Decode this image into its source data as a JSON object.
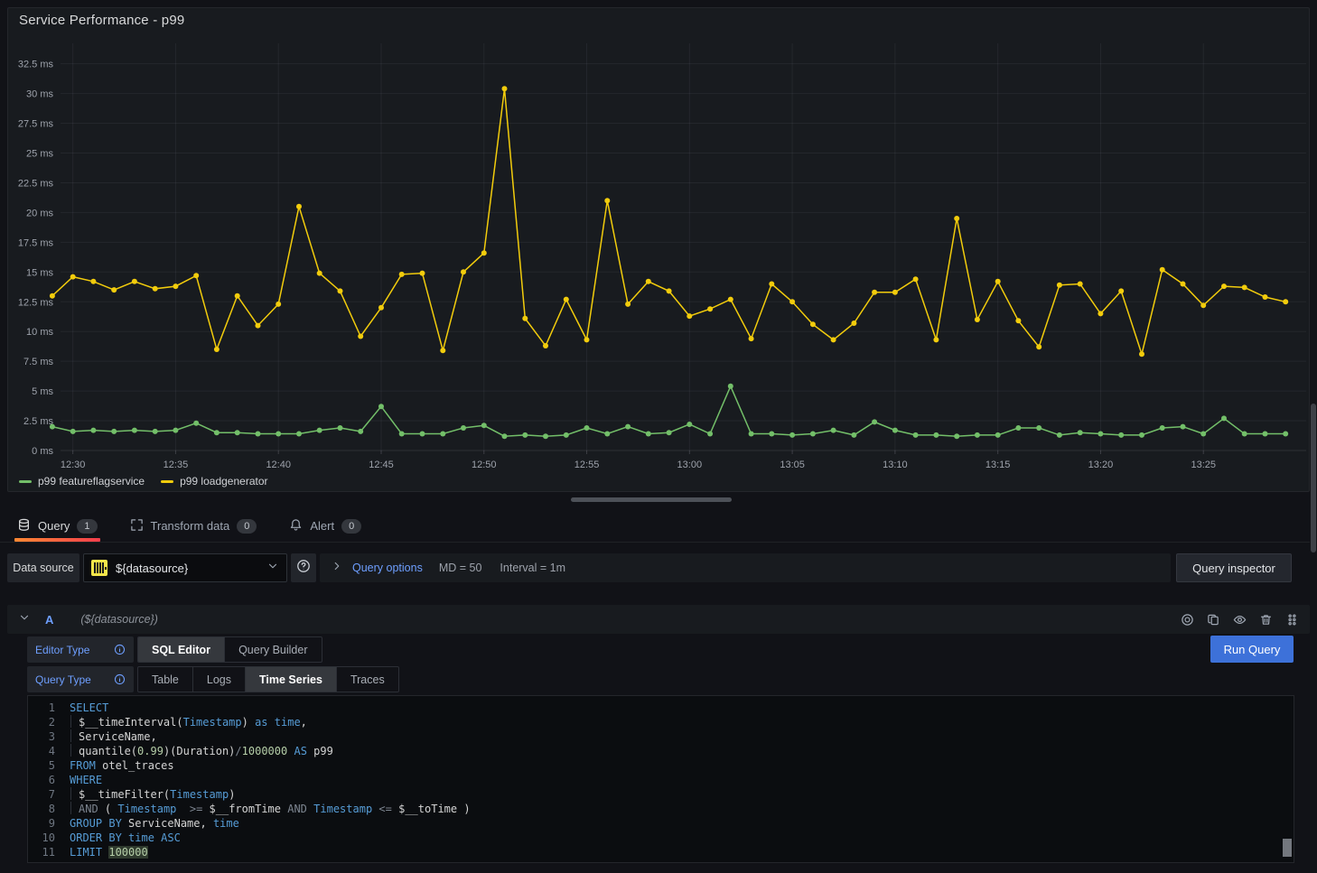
{
  "panel": {
    "title": "Service Performance - p99"
  },
  "chart_data": {
    "type": "line",
    "title": "Service Performance - p99",
    "unit": "ms",
    "grid": true,
    "legend_position": "bottom-left",
    "ylim": [
      0,
      34.5
    ],
    "y_ticks": [
      0,
      2.5,
      5,
      7.5,
      10,
      12.5,
      15,
      17.5,
      20,
      22.5,
      25,
      27.5,
      30,
      32.5
    ],
    "x_ticks": [
      "12:30",
      "12:35",
      "12:40",
      "12:45",
      "12:50",
      "12:55",
      "13:00",
      "13:05",
      "13:10",
      "13:15",
      "13:20",
      "13:25"
    ],
    "x": [
      "12:29",
      "12:30",
      "12:31",
      "12:32",
      "12:33",
      "12:34",
      "12:35",
      "12:36",
      "12:37",
      "12:38",
      "12:39",
      "12:40",
      "12:41",
      "12:42",
      "12:43",
      "12:44",
      "12:45",
      "12:46",
      "12:47",
      "12:48",
      "12:49",
      "12:50",
      "12:51",
      "12:52",
      "12:53",
      "12:54",
      "12:55",
      "12:56",
      "12:57",
      "12:58",
      "12:59",
      "13:00",
      "13:01",
      "13:02",
      "13:03",
      "13:04",
      "13:05",
      "13:06",
      "13:07",
      "13:08",
      "13:09",
      "13:10",
      "13:11",
      "13:12",
      "13:13",
      "13:14",
      "13:15",
      "13:16",
      "13:17",
      "13:18",
      "13:19",
      "13:20",
      "13:21",
      "13:22",
      "13:23",
      "13:24",
      "13:25",
      "13:26",
      "13:27",
      "13:28",
      "13:29"
    ],
    "series": [
      {
        "name": "p99 featureflagservice",
        "color": "#73bf69",
        "values": [
          2.0,
          1.6,
          1.7,
          1.6,
          1.7,
          1.6,
          1.7,
          2.3,
          1.5,
          1.5,
          1.4,
          1.4,
          1.4,
          1.7,
          1.9,
          1.6,
          3.7,
          1.4,
          1.4,
          1.4,
          1.9,
          2.1,
          1.2,
          1.3,
          1.2,
          1.3,
          1.9,
          1.4,
          2.0,
          1.4,
          1.5,
          2.2,
          1.4,
          5.4,
          1.4,
          1.4,
          1.3,
          1.4,
          1.7,
          1.3,
          2.4,
          1.7,
          1.3,
          1.3,
          1.2,
          1.3,
          1.3,
          1.9,
          1.9,
          1.3,
          1.5,
          1.4,
          1.3,
          1.3,
          1.9,
          2.0,
          1.4,
          2.7,
          1.4,
          1.4,
          1.4
        ]
      },
      {
        "name": "p99 loadgenerator",
        "color": "#f2cc0c",
        "values": [
          13.0,
          14.6,
          14.2,
          13.5,
          14.2,
          13.6,
          13.8,
          14.7,
          8.5,
          13.0,
          10.5,
          12.3,
          20.5,
          14.9,
          13.4,
          9.6,
          12.0,
          14.8,
          14.9,
          8.4,
          15.0,
          16.6,
          30.4,
          11.1,
          8.8,
          12.7,
          9.3,
          21.0,
          12.3,
          14.2,
          13.4,
          11.3,
          11.9,
          12.7,
          9.4,
          14.0,
          12.5,
          10.6,
          9.3,
          10.7,
          13.3,
          13.3,
          14.4,
          9.3,
          19.5,
          11.0,
          14.2,
          10.9,
          8.7,
          13.9,
          14.0,
          11.5,
          13.4,
          8.1,
          15.2,
          14.0,
          12.2,
          13.8,
          13.7,
          12.9,
          12.5
        ]
      }
    ]
  },
  "tabs": [
    {
      "label": "Query",
      "badge": "1",
      "icon": "database-icon",
      "active": true
    },
    {
      "label": "Transform data",
      "badge": "0",
      "icon": "transform-icon",
      "active": false
    },
    {
      "label": "Alert",
      "badge": "0",
      "icon": "bell-icon",
      "active": false
    }
  ],
  "toolbar": {
    "datasource_label": "Data source",
    "datasource_value": "${datasource}",
    "datasource_icon": "clickhouse-logo-icon",
    "help_icon": "help-circle-icon",
    "query_options_label": "Query options",
    "md": "MD = 50",
    "interval": "Interval = 1m",
    "query_inspector_label": "Query inspector"
  },
  "query_row": {
    "ref_id": "A",
    "datasource_hint": "(${datasource})",
    "header_icons": [
      "record-icon",
      "copy-icon",
      "eye-icon",
      "trash-icon",
      "drag-handle-icon"
    ],
    "editor_type_label": "Editor Type",
    "editor_type_options": [
      "SQL Editor",
      "Query Builder"
    ],
    "editor_type_selected": "SQL Editor",
    "query_type_label": "Query Type",
    "query_type_options": [
      "Table",
      "Logs",
      "Time Series",
      "Traces"
    ],
    "query_type_selected": "Time Series",
    "run_query_label": "Run Query"
  },
  "sql_editor": {
    "lines": [
      {
        "n": "1",
        "indent": false,
        "t": [
          [
            "kw",
            "SELECT"
          ]
        ]
      },
      {
        "n": "2",
        "indent": true,
        "t": [
          [
            "id",
            "$__timeInterval("
          ],
          [
            "kw",
            "Timestamp"
          ],
          [
            "id",
            ") "
          ],
          [
            "kw",
            "as "
          ],
          [
            "kw",
            "time"
          ],
          [
            "id",
            ","
          ]
        ]
      },
      {
        "n": "3",
        "indent": true,
        "t": [
          [
            "id",
            "ServiceName,"
          ]
        ]
      },
      {
        "n": "4",
        "indent": true,
        "t": [
          [
            "id",
            "quantile("
          ],
          [
            "num",
            "0.99"
          ],
          [
            "id",
            ")(Duration)"
          ],
          [
            "op",
            "/"
          ],
          [
            "num",
            "1000000"
          ],
          [
            "id",
            " "
          ],
          [
            "kw",
            "AS"
          ],
          [
            "id",
            " p99"
          ]
        ]
      },
      {
        "n": "5",
        "indent": false,
        "t": [
          [
            "kw",
            "FROM"
          ],
          [
            "id",
            " otel_traces"
          ]
        ]
      },
      {
        "n": "6",
        "indent": false,
        "t": [
          [
            "kw",
            "WHERE"
          ]
        ]
      },
      {
        "n": "7",
        "indent": true,
        "t": [
          [
            "id",
            "$__timeFilter("
          ],
          [
            "kw",
            "Timestamp"
          ],
          [
            "id",
            ")"
          ]
        ]
      },
      {
        "n": "8",
        "indent": true,
        "t": [
          [
            "op",
            "AND"
          ],
          [
            "id",
            " ( "
          ],
          [
            "kw",
            "Timestamp"
          ],
          [
            "id",
            "  "
          ],
          [
            "op",
            ">="
          ],
          [
            "id",
            " $__fromTime "
          ],
          [
            "op",
            "AND"
          ],
          [
            "id",
            " "
          ],
          [
            "kw",
            "Timestamp"
          ],
          [
            "id",
            " "
          ],
          [
            "op",
            "<="
          ],
          [
            "id",
            " $__toTime )"
          ]
        ]
      },
      {
        "n": "9",
        "indent": false,
        "t": [
          [
            "kw",
            "GROUP BY"
          ],
          [
            "id",
            " ServiceName, "
          ],
          [
            "kw",
            "time"
          ]
        ]
      },
      {
        "n": "10",
        "indent": false,
        "t": [
          [
            "kw",
            "ORDER BY"
          ],
          [
            "id",
            " "
          ],
          [
            "kw",
            "time"
          ],
          [
            "id",
            " "
          ],
          [
            "kw",
            "ASC"
          ]
        ]
      },
      {
        "n": "11",
        "indent": false,
        "t": [
          [
            "kw",
            "LIMIT"
          ],
          [
            "id",
            " "
          ],
          [
            "numhl",
            "100000"
          ]
        ]
      }
    ]
  }
}
